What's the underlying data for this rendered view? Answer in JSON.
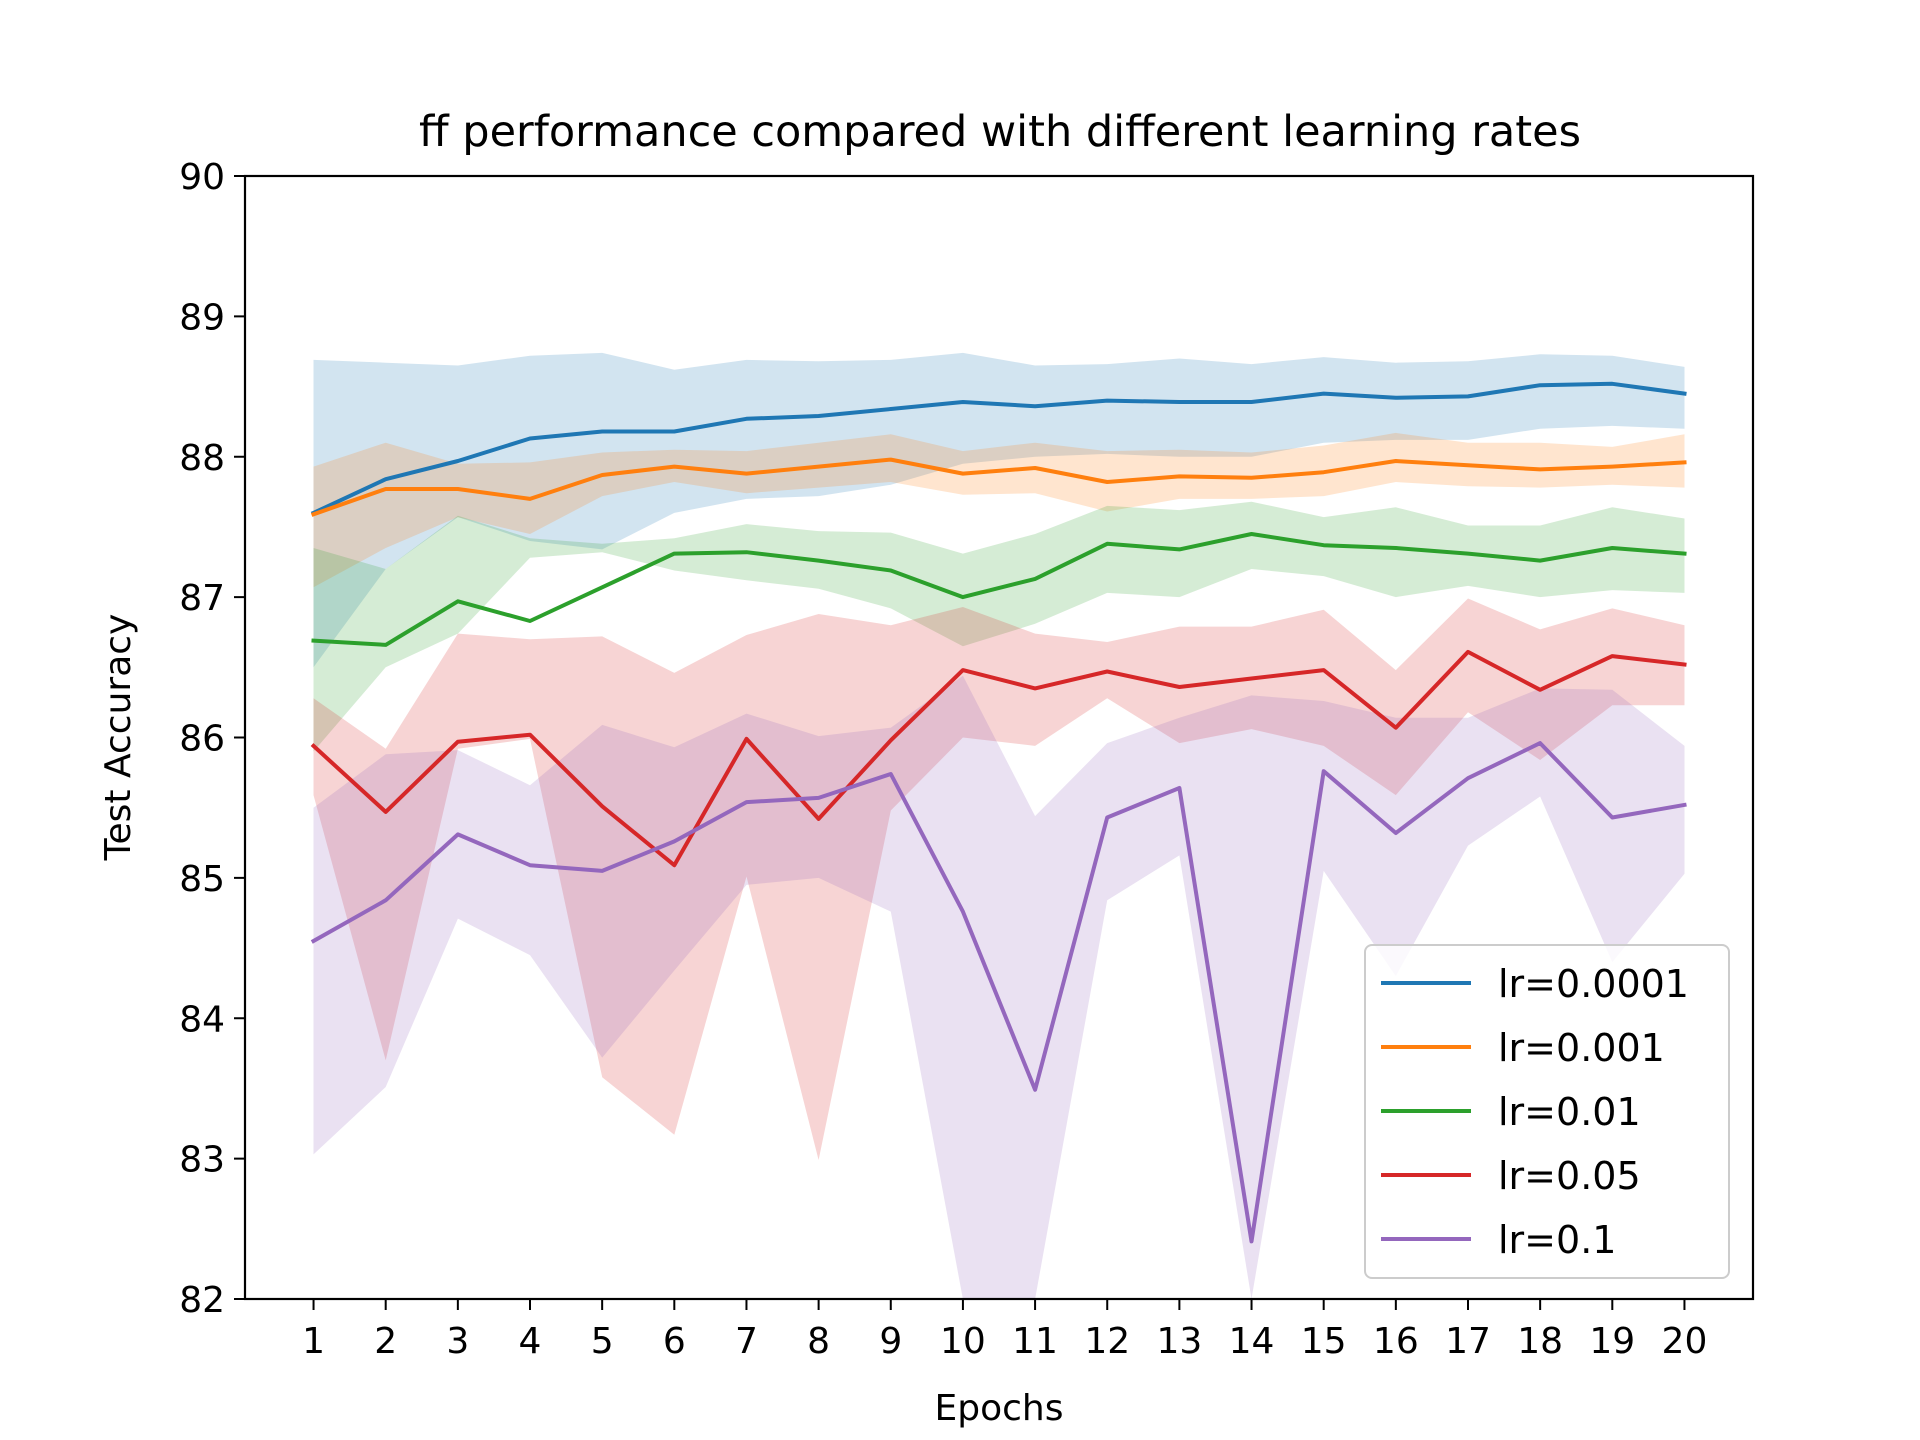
{
  "chart_data": {
    "type": "line",
    "title": "ff performance compared with different learning rates",
    "xlabel": "Epochs",
    "ylabel": "Test Accuracy",
    "xlim": [
      0.05,
      20.95
    ],
    "ylim": [
      82,
      90
    ],
    "x": [
      1,
      2,
      3,
      4,
      5,
      6,
      7,
      8,
      9,
      10,
      11,
      12,
      13,
      14,
      15,
      16,
      17,
      18,
      19,
      20
    ],
    "x_ticks": [
      "1",
      "2",
      "3",
      "4",
      "5",
      "6",
      "7",
      "8",
      "9",
      "10",
      "11",
      "12",
      "13",
      "14",
      "15",
      "16",
      "17",
      "18",
      "19",
      "20"
    ],
    "y_ticks": [
      "82",
      "83",
      "84",
      "85",
      "86",
      "87",
      "88",
      "89",
      "90"
    ],
    "grid": false,
    "legend_position": "bottom-right",
    "series": [
      {
        "name": "lr=0.0001",
        "color": "#1f77b4",
        "values": [
          87.6,
          87.84,
          87.97,
          88.13,
          88.18,
          88.18,
          88.27,
          88.29,
          88.34,
          88.39,
          88.36,
          88.4,
          88.39,
          88.39,
          88.45,
          88.42,
          88.43,
          88.51,
          88.52,
          88.45
        ],
        "upper": [
          88.69,
          88.67,
          88.65,
          88.72,
          88.74,
          88.62,
          88.69,
          88.68,
          88.69,
          88.74,
          88.65,
          88.66,
          88.7,
          88.66,
          88.71,
          88.67,
          88.68,
          88.73,
          88.72,
          88.64
        ],
        "lower": [
          86.5,
          87.2,
          87.57,
          87.4,
          87.34,
          87.6,
          87.7,
          87.72,
          87.8,
          87.95,
          88.0,
          88.02,
          88.0,
          88.0,
          88.1,
          88.12,
          88.12,
          88.2,
          88.22,
          88.2
        ]
      },
      {
        "name": "lr=0.001",
        "color": "#ff7f0e",
        "values": [
          87.59,
          87.77,
          87.77,
          87.7,
          87.87,
          87.93,
          87.88,
          87.93,
          87.98,
          87.88,
          87.92,
          87.82,
          87.86,
          87.85,
          87.89,
          87.97,
          87.94,
          87.91,
          87.93,
          87.96
        ],
        "upper": [
          87.93,
          88.1,
          87.95,
          87.96,
          88.03,
          88.05,
          88.04,
          88.1,
          88.16,
          88.04,
          88.1,
          88.04,
          88.05,
          88.03,
          88.08,
          88.17,
          88.1,
          88.1,
          88.07,
          88.16
        ],
        "lower": [
          87.07,
          87.35,
          87.57,
          87.45,
          87.72,
          87.82,
          87.74,
          87.78,
          87.82,
          87.73,
          87.74,
          87.61,
          87.7,
          87.7,
          87.72,
          87.82,
          87.79,
          87.78,
          87.8,
          87.78
        ]
      },
      {
        "name": "lr=0.01",
        "color": "#2ca02c",
        "values": [
          86.69,
          86.66,
          86.97,
          86.83,
          87.07,
          87.31,
          87.32,
          87.26,
          87.19,
          87.0,
          87.13,
          87.38,
          87.34,
          87.45,
          87.37,
          87.35,
          87.31,
          87.26,
          87.35,
          87.31
        ],
        "upper": [
          87.35,
          87.2,
          87.58,
          87.42,
          87.38,
          87.42,
          87.52,
          87.47,
          87.46,
          87.31,
          87.45,
          87.65,
          87.62,
          87.68,
          87.57,
          87.64,
          87.51,
          87.51,
          87.64,
          87.56
        ],
        "lower": [
          85.9,
          86.5,
          86.74,
          87.28,
          87.32,
          87.19,
          87.12,
          87.06,
          86.92,
          86.65,
          86.81,
          87.03,
          87.0,
          87.2,
          87.15,
          87.0,
          87.08,
          87.0,
          87.05,
          87.03
        ]
      },
      {
        "name": "lr=0.05",
        "color": "#d62728",
        "values": [
          85.94,
          85.47,
          85.97,
          86.02,
          85.51,
          85.09,
          85.99,
          85.42,
          85.98,
          86.48,
          86.35,
          86.47,
          86.36,
          86.42,
          86.48,
          86.07,
          86.61,
          86.34,
          86.58,
          86.52
        ],
        "upper": [
          86.28,
          85.92,
          86.74,
          86.7,
          86.72,
          86.46,
          86.73,
          86.88,
          86.8,
          86.93,
          86.74,
          86.68,
          86.79,
          86.79,
          86.91,
          86.48,
          86.99,
          86.77,
          86.92,
          86.8
        ],
        "lower": [
          85.59,
          83.7,
          85.92,
          85.99,
          83.58,
          83.17,
          85.01,
          82.99,
          85.48,
          86.0,
          85.94,
          86.28,
          85.96,
          86.06,
          85.94,
          85.59,
          86.18,
          85.84,
          86.23,
          86.23
        ]
      },
      {
        "name": "lr=0.1",
        "color": "#9467bd",
        "values": [
          84.55,
          84.84,
          85.31,
          85.09,
          85.05,
          85.26,
          85.54,
          85.57,
          85.74,
          84.76,
          83.49,
          85.43,
          85.64,
          82.41,
          85.76,
          85.32,
          85.71,
          85.96,
          85.43,
          85.52
        ],
        "upper": [
          85.5,
          85.88,
          85.91,
          85.66,
          86.09,
          85.93,
          86.17,
          86.01,
          86.07,
          86.44,
          85.44,
          85.96,
          86.14,
          86.3,
          86.26,
          86.14,
          86.14,
          86.35,
          86.34,
          85.94
        ],
        "lower": [
          83.03,
          83.51,
          84.71,
          84.45,
          83.72,
          84.34,
          84.95,
          85.0,
          84.76,
          81.6,
          81.6,
          84.84,
          85.16,
          81.6,
          85.05,
          84.3,
          85.23,
          85.58,
          84.4,
          85.03
        ]
      }
    ]
  }
}
